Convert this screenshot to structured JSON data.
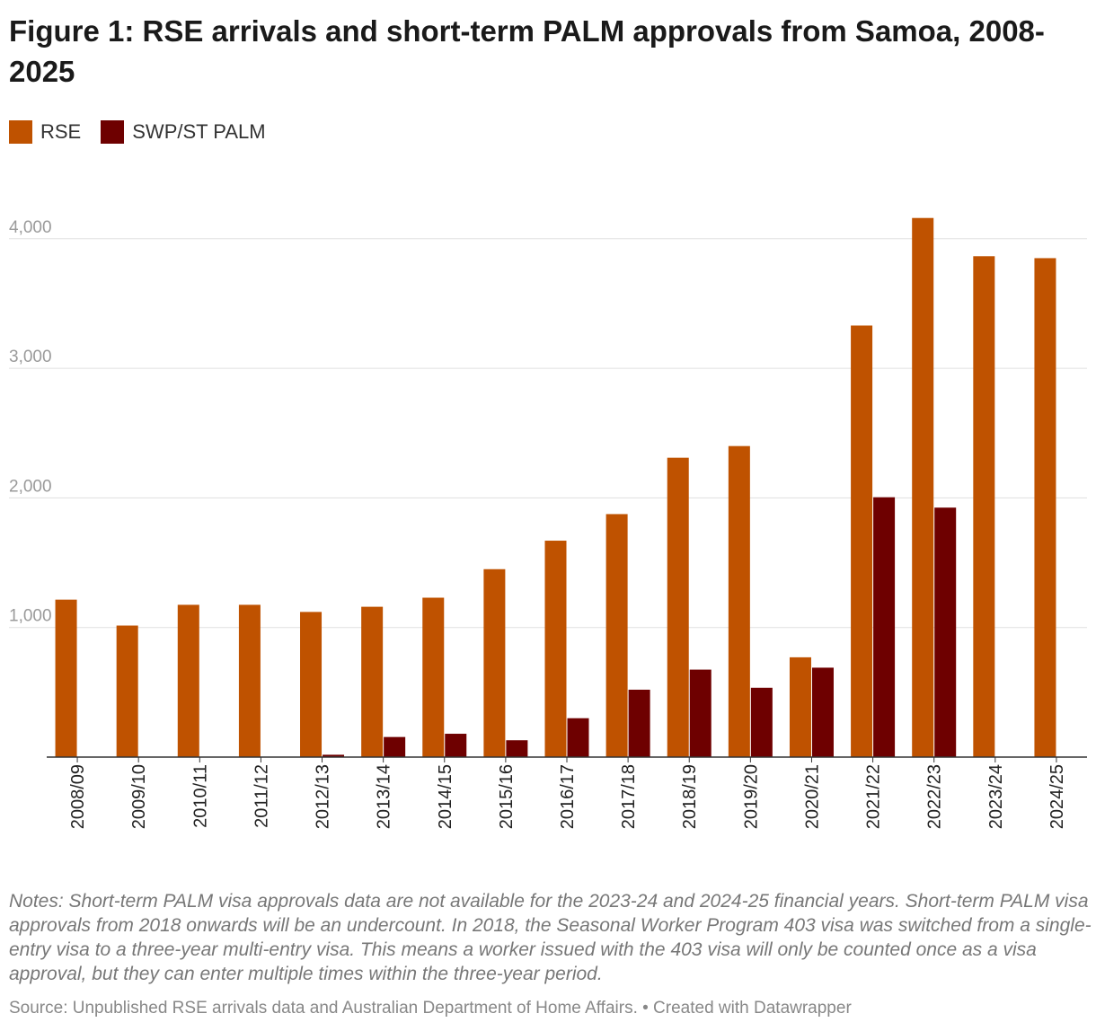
{
  "title": "Figure 1: RSE arrivals and short-term PALM approvals from Samoa, 2008-2025",
  "colors": {
    "rse": "#bf5200",
    "palm": "#6e0000",
    "grid": "#e0e0e0",
    "axis": "#333333",
    "tick": "#9a9a9a"
  },
  "legend": [
    {
      "label": "RSE",
      "color": "#bf5200"
    },
    {
      "label": "SWP/ST PALM",
      "color": "#6e0000"
    }
  ],
  "chart_data": {
    "type": "bar",
    "title": "Figure 1: RSE arrivals and short-term PALM approvals from Samoa, 2008-2025",
    "xlabel": "",
    "ylabel": "",
    "ylim": [
      0,
      4200
    ],
    "yticks": [
      1000,
      2000,
      3000,
      4000
    ],
    "ytick_labels": [
      "1,000",
      "2,000",
      "3,000",
      "4,000"
    ],
    "grid": true,
    "legend_position": "top-left",
    "categories": [
      "2008/09",
      "2009/10",
      "2010/11",
      "2011/12",
      "2012/13",
      "2013/14",
      "2014/15",
      "2015/16",
      "2016/17",
      "2017/18",
      "2018/19",
      "2019/20",
      "2020/21",
      "2021/22",
      "2022/23",
      "2023/24",
      "2024/25"
    ],
    "series": [
      {
        "name": "RSE",
        "values": [
          1215,
          1015,
          1175,
          1175,
          1120,
          1160,
          1230,
          1450,
          1670,
          1875,
          2310,
          2400,
          770,
          3330,
          4160,
          3865,
          3850
        ]
      },
      {
        "name": "SWP/ST PALM",
        "values": [
          0,
          0,
          0,
          0,
          18,
          155,
          180,
          130,
          300,
          520,
          675,
          535,
          690,
          2005,
          1925,
          null,
          null
        ]
      }
    ]
  },
  "notes": "Notes: Short-term PALM visa approvals data are not available for the 2023-24 and 2024-25 financial years. Short-term PALM visa approvals from 2018 onwards will be an undercount. In 2018, the Seasonal Worker Program 403 visa was switched from a single-entry visa to a three-year multi-entry visa. This means a worker issued with the 403 visa will only be counted once as a visa approval, but they can enter multiple times within the three-year period.",
  "source": "Source: Unpublished RSE arrivals data and Australian Department of Home Affairs. • Created with Datawrapper"
}
